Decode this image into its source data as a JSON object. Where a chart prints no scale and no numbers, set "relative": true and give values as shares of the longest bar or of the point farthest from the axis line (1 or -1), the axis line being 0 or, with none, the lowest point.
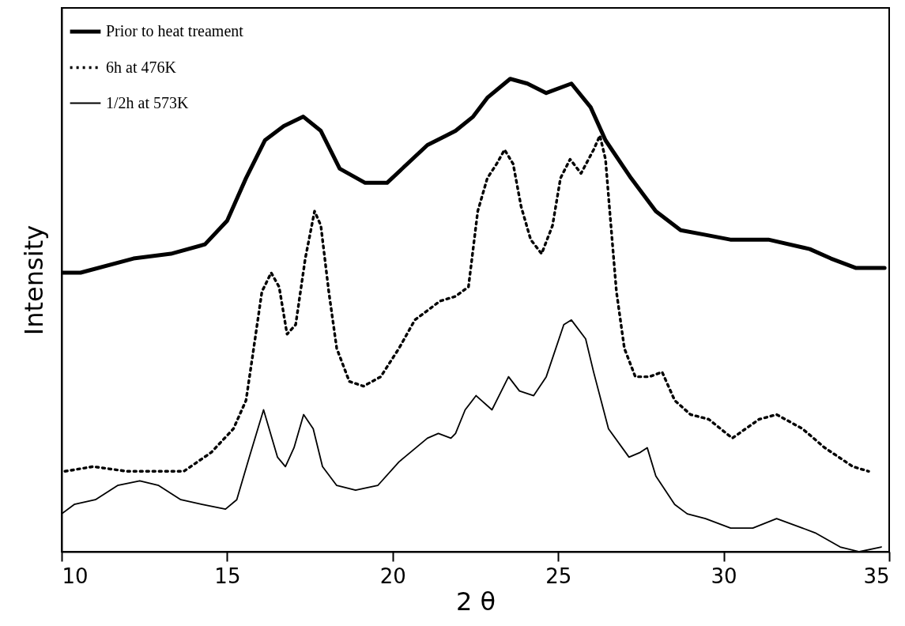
{
  "chart_data": {
    "type": "line",
    "relative": true,
    "xlabel": "2 θ",
    "ylabel": "Intensity",
    "xlim": [
      10,
      35
    ],
    "xticks": [
      10,
      15,
      20,
      25,
      30,
      35
    ],
    "legend": "top left",
    "grid": false,
    "series": [
      {
        "name": "Prior to heat treament",
        "color": "#000000",
        "line_style": "solid",
        "x": [
          10,
          10.57,
          12.17,
          13.3,
          14.33,
          15,
          15.57,
          16.14,
          16.71,
          17.3,
          17.83,
          18.4,
          19.17,
          19.83,
          21.05,
          21.62,
          21.9,
          22.43,
          22.86,
          23.55,
          24.07,
          24.64,
          25.4,
          25.98,
          26.43,
          27.2,
          27.95,
          28.7,
          29.45,
          30.2,
          31.35,
          32.6,
          33.24,
          34,
          34.86
        ],
        "values": [
          0.59,
          0.59,
          0.62,
          0.63,
          0.65,
          0.7,
          0.79,
          0.87,
          0.9,
          0.92,
          0.89,
          0.81,
          0.78,
          0.78,
          0.86,
          0.88,
          0.89,
          0.92,
          0.96,
          1,
          0.99,
          0.97,
          0.99,
          0.94,
          0.87,
          0.79,
          0.72,
          0.68,
          0.67,
          0.66,
          0.66,
          0.64,
          0.62,
          0.6,
          0.6
        ]
      },
      {
        "name": "6h at 476K",
        "color": "#000000",
        "line_style": "dotted",
        "x": [
          10.1,
          10.95,
          11.97,
          12.93,
          13.69,
          14.52,
          15.19,
          15.57,
          15.76,
          16.05,
          16.33,
          16.57,
          16.81,
          17.07,
          17.36,
          17.64,
          17.83,
          18.07,
          18.31,
          18.69,
          19.12,
          19.64,
          20.19,
          20.67,
          21.43,
          21.9,
          22.29,
          22.57,
          22.86,
          23.14,
          23.38,
          23.64,
          23.88,
          24.17,
          24.5,
          24.83,
          25.07,
          25.36,
          25.69,
          26.07,
          26.26,
          26.43,
          26.57,
          26.76,
          27,
          27.33,
          27.76,
          28.14,
          28.52,
          29,
          29.55,
          30.26,
          31.07,
          31.6,
          32.38,
          33.05,
          33.9,
          34.38
        ],
        "values": [
          0.17,
          0.18,
          0.17,
          0.17,
          0.17,
          0.21,
          0.26,
          0.32,
          0.41,
          0.55,
          0.59,
          0.56,
          0.46,
          0.48,
          0.62,
          0.72,
          0.69,
          0.55,
          0.43,
          0.36,
          0.35,
          0.37,
          0.43,
          0.49,
          0.53,
          0.54,
          0.56,
          0.72,
          0.79,
          0.82,
          0.85,
          0.82,
          0.73,
          0.66,
          0.63,
          0.69,
          0.79,
          0.83,
          0.8,
          0.85,
          0.88,
          0.83,
          0.71,
          0.55,
          0.43,
          0.37,
          0.37,
          0.38,
          0.32,
          0.29,
          0.28,
          0.24,
          0.28,
          0.29,
          0.26,
          0.22,
          0.18,
          0.17
        ]
      },
      {
        "name": "1/2h at 573K",
        "color": "#000000",
        "line_style": "solid",
        "x": [
          10,
          10.38,
          11.02,
          11.69,
          12.36,
          12.93,
          13.6,
          14.24,
          14.95,
          15.29,
          15.67,
          16.1,
          16.52,
          16.76,
          17.02,
          17.31,
          17.6,
          17.88,
          18.31,
          18.88,
          19.55,
          20.19,
          21.05,
          21.38,
          21.76,
          21.9,
          22.19,
          22.52,
          23,
          23.5,
          23.83,
          24.26,
          24.64,
          25.17,
          25.4,
          25.83,
          26.07,
          26.52,
          27.14,
          27.48,
          27.69,
          27.95,
          28.52,
          28.9,
          29.45,
          30.21,
          30.88,
          31.6,
          32.38,
          32.76,
          33.52,
          34.1,
          34.76
        ],
        "values": [
          0.08,
          0.1,
          0.11,
          0.14,
          0.15,
          0.14,
          0.11,
          0.1,
          0.09,
          0.11,
          0.2,
          0.3,
          0.2,
          0.18,
          0.22,
          0.29,
          0.26,
          0.18,
          0.14,
          0.13,
          0.14,
          0.19,
          0.24,
          0.25,
          0.24,
          0.25,
          0.3,
          0.33,
          0.3,
          0.37,
          0.34,
          0.33,
          0.37,
          0.48,
          0.49,
          0.45,
          0.38,
          0.26,
          0.2,
          0.21,
          0.22,
          0.16,
          0.1,
          0.08,
          0.07,
          0.05,
          0.05,
          0.07,
          0.05,
          0.04,
          0.01,
          0,
          0.01
        ]
      }
    ]
  }
}
